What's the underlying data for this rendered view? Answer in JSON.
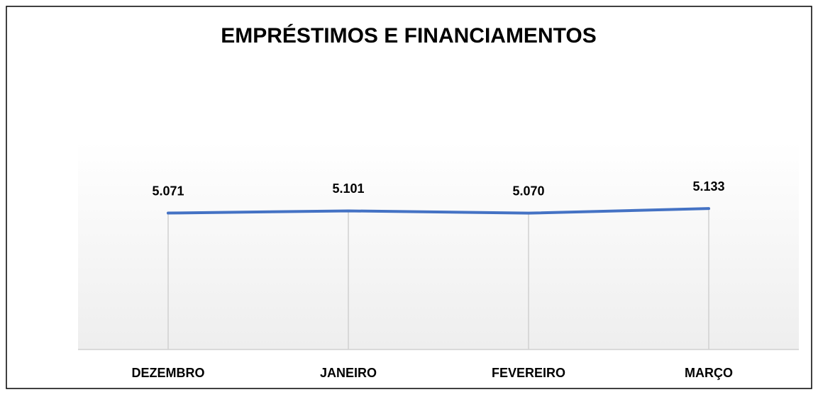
{
  "chart_data": {
    "type": "line",
    "title": "EMPRÉSTIMOS E FINANCIAMENTOS",
    "categories": [
      "DEZEMBRO",
      "JANEIRO",
      "FEVEREIRO",
      "MARÇO"
    ],
    "series": [
      {
        "color": "#4472c4",
        "values": [
          5071,
          5101,
          5070,
          5133
        ],
        "value_labels": [
          "5.071",
          "5.101",
          "5.070",
          "5.133"
        ]
      }
    ],
    "ylim": [
      3200,
      6000
    ]
  }
}
